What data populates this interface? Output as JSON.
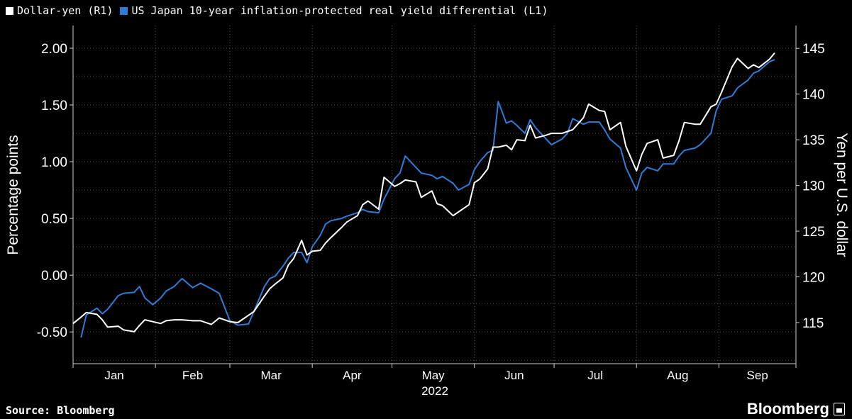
{
  "legend": {
    "items": [
      {
        "label": "Dollar-yen (R1)",
        "color": "#ffffff"
      },
      {
        "label": "US Japan 10-year inflation-protected real yield differential (L1)",
        "color": "#2f7bd6"
      }
    ]
  },
  "footer": {
    "source": "Source: Bloomberg",
    "brand": "Bloomberg"
  },
  "chart_data": {
    "type": "line",
    "year_label": "2022",
    "x_months": [
      "Jan",
      "Feb",
      "Mar",
      "Apr",
      "May",
      "Jun",
      "Jul",
      "Aug",
      "Sep"
    ],
    "left_axis": {
      "label": "Percentage points",
      "ticks": [
        "2.00",
        "1.50",
        "1.00",
        "0.50",
        "0.00",
        "-0.50"
      ],
      "tick_values": [
        2.0,
        1.5,
        1.0,
        0.5,
        0.0,
        -0.5
      ],
      "range": [
        -0.78,
        2.2
      ]
    },
    "right_axis": {
      "label": "Yen per U.S. dollar",
      "ticks": [
        "145",
        "140",
        "135",
        "130",
        "125",
        "120",
        "115"
      ],
      "tick_values": [
        145,
        140,
        135,
        130,
        125,
        120,
        115
      ],
      "range": [
        110.5,
        147.5
      ]
    },
    "grid": true,
    "legend_position": "top-left",
    "series": [
      {
        "name": "Dollar-yen (R1)",
        "axis": "right",
        "color": "#ffffff",
        "points": [
          [
            "2022-01-01",
            114.9
          ],
          [
            "2022-01-04",
            115.6
          ],
          [
            "2022-01-06",
            116.1
          ],
          [
            "2022-01-10",
            115.9
          ],
          [
            "2022-01-12",
            115.3
          ],
          [
            "2022-01-14",
            114.5
          ],
          [
            "2022-01-18",
            114.6
          ],
          [
            "2022-01-20",
            114.2
          ],
          [
            "2022-01-24",
            114.0
          ],
          [
            "2022-01-26",
            114.7
          ],
          [
            "2022-01-28",
            115.3
          ],
          [
            "2022-01-31",
            115.1
          ],
          [
            "2022-02-03",
            114.9
          ],
          [
            "2022-02-05",
            115.2
          ],
          [
            "2022-02-08",
            115.3
          ],
          [
            "2022-02-11",
            115.3
          ],
          [
            "2022-02-15",
            115.2
          ],
          [
            "2022-02-18",
            115.2
          ],
          [
            "2022-02-22",
            114.8
          ],
          [
            "2022-02-25",
            115.5
          ],
          [
            "2022-03-01",
            115.1
          ],
          [
            "2022-03-04",
            115.0
          ],
          [
            "2022-03-08",
            115.8
          ],
          [
            "2022-03-10",
            116.2
          ],
          [
            "2022-03-14",
            117.9
          ],
          [
            "2022-03-16",
            118.7
          ],
          [
            "2022-03-18",
            119.2
          ],
          [
            "2022-03-21",
            119.9
          ],
          [
            "2022-03-23",
            121.3
          ],
          [
            "2022-03-25",
            122.0
          ],
          [
            "2022-03-28",
            124.0
          ],
          [
            "2022-03-30",
            122.4
          ],
          [
            "2022-04-01",
            122.8
          ],
          [
            "2022-04-04",
            122.9
          ],
          [
            "2022-04-06",
            123.7
          ],
          [
            "2022-04-08",
            124.3
          ],
          [
            "2022-04-12",
            125.4
          ],
          [
            "2022-04-14",
            126.0
          ],
          [
            "2022-04-18",
            126.7
          ],
          [
            "2022-04-20",
            127.9
          ],
          [
            "2022-04-22",
            128.3
          ],
          [
            "2022-04-26",
            127.4
          ],
          [
            "2022-04-28",
            130.9
          ],
          [
            "2022-05-02",
            129.9
          ],
          [
            "2022-05-04",
            130.2
          ],
          [
            "2022-05-06",
            130.6
          ],
          [
            "2022-05-10",
            130.4
          ],
          [
            "2022-05-12",
            128.7
          ],
          [
            "2022-05-16",
            129.4
          ],
          [
            "2022-05-18",
            128.0
          ],
          [
            "2022-05-20",
            127.8
          ],
          [
            "2022-05-24",
            126.7
          ],
          [
            "2022-05-26",
            127.1
          ],
          [
            "2022-05-30",
            127.9
          ],
          [
            "2022-06-01",
            130.3
          ],
          [
            "2022-06-03",
            130.7
          ],
          [
            "2022-06-06",
            131.8
          ],
          [
            "2022-06-08",
            134.2
          ],
          [
            "2022-06-10",
            134.2
          ],
          [
            "2022-06-13",
            134.4
          ],
          [
            "2022-06-15",
            133.9
          ],
          [
            "2022-06-17",
            135.0
          ],
          [
            "2022-06-20",
            134.9
          ],
          [
            "2022-06-22",
            136.6
          ],
          [
            "2022-06-24",
            135.2
          ],
          [
            "2022-06-28",
            135.5
          ],
          [
            "2022-06-30",
            135.7
          ],
          [
            "2022-07-04",
            135.7
          ],
          [
            "2022-07-06",
            135.9
          ],
          [
            "2022-07-08",
            136.1
          ],
          [
            "2022-07-12",
            137.4
          ],
          [
            "2022-07-14",
            138.9
          ],
          [
            "2022-07-18",
            138.2
          ],
          [
            "2022-07-20",
            138.1
          ],
          [
            "2022-07-22",
            136.1
          ],
          [
            "2022-07-26",
            136.9
          ],
          [
            "2022-07-28",
            134.3
          ],
          [
            "2022-08-01",
            131.6
          ],
          [
            "2022-08-03",
            133.4
          ],
          [
            "2022-08-05",
            134.6
          ],
          [
            "2022-08-09",
            135.0
          ],
          [
            "2022-08-11",
            133.0
          ],
          [
            "2022-08-15",
            133.3
          ],
          [
            "2022-08-17",
            134.9
          ],
          [
            "2022-08-19",
            136.9
          ],
          [
            "2022-08-23",
            136.7
          ],
          [
            "2022-08-25",
            136.7
          ],
          [
            "2022-08-29",
            138.6
          ],
          [
            "2022-08-31",
            138.9
          ],
          [
            "2022-09-02",
            140.2
          ],
          [
            "2022-09-06",
            143.0
          ],
          [
            "2022-09-08",
            143.9
          ],
          [
            "2022-09-12",
            142.8
          ],
          [
            "2022-09-14",
            143.2
          ],
          [
            "2022-09-16",
            142.9
          ],
          [
            "2022-09-20",
            143.8
          ],
          [
            "2022-09-22",
            144.5
          ]
        ]
      },
      {
        "name": "US Japan 10-year inflation-protected real yield differential (L1)",
        "axis": "left",
        "color": "#2f7bd6",
        "points": [
          [
            "2022-01-04",
            -0.55
          ],
          [
            "2022-01-06",
            -0.35
          ],
          [
            "2022-01-10",
            -0.29
          ],
          [
            "2022-01-12",
            -0.34
          ],
          [
            "2022-01-14",
            -0.3
          ],
          [
            "2022-01-18",
            -0.18
          ],
          [
            "2022-01-20",
            -0.16
          ],
          [
            "2022-01-24",
            -0.15
          ],
          [
            "2022-01-26",
            -0.1
          ],
          [
            "2022-01-28",
            -0.2
          ],
          [
            "2022-01-31",
            -0.26
          ],
          [
            "2022-02-03",
            -0.2
          ],
          [
            "2022-02-05",
            -0.14
          ],
          [
            "2022-02-08",
            -0.1
          ],
          [
            "2022-02-11",
            -0.03
          ],
          [
            "2022-02-15",
            -0.11
          ],
          [
            "2022-02-18",
            -0.07
          ],
          [
            "2022-02-22",
            -0.12
          ],
          [
            "2022-02-25",
            -0.16
          ],
          [
            "2022-03-01",
            -0.4
          ],
          [
            "2022-03-04",
            -0.44
          ],
          [
            "2022-03-08",
            -0.43
          ],
          [
            "2022-03-10",
            -0.32
          ],
          [
            "2022-03-14",
            -0.1
          ],
          [
            "2022-03-16",
            -0.03
          ],
          [
            "2022-03-18",
            -0.01
          ],
          [
            "2022-03-21",
            0.08
          ],
          [
            "2022-03-23",
            0.15
          ],
          [
            "2022-03-25",
            0.2
          ],
          [
            "2022-03-28",
            0.2
          ],
          [
            "2022-03-30",
            0.11
          ],
          [
            "2022-04-01",
            0.25
          ],
          [
            "2022-04-04",
            0.35
          ],
          [
            "2022-04-06",
            0.45
          ],
          [
            "2022-04-08",
            0.48
          ],
          [
            "2022-04-12",
            0.5
          ],
          [
            "2022-04-14",
            0.52
          ],
          [
            "2022-04-18",
            0.55
          ],
          [
            "2022-04-20",
            0.58
          ],
          [
            "2022-04-22",
            0.56
          ],
          [
            "2022-04-26",
            0.55
          ],
          [
            "2022-04-28",
            0.67
          ],
          [
            "2022-05-02",
            0.85
          ],
          [
            "2022-05-04",
            0.9
          ],
          [
            "2022-05-06",
            1.05
          ],
          [
            "2022-05-10",
            0.95
          ],
          [
            "2022-05-12",
            0.9
          ],
          [
            "2022-05-16",
            0.88
          ],
          [
            "2022-05-18",
            0.85
          ],
          [
            "2022-05-20",
            0.87
          ],
          [
            "2022-05-24",
            0.81
          ],
          [
            "2022-05-26",
            0.75
          ],
          [
            "2022-05-30",
            0.8
          ],
          [
            "2022-06-01",
            0.93
          ],
          [
            "2022-06-03",
            1.0
          ],
          [
            "2022-06-06",
            1.08
          ],
          [
            "2022-06-08",
            1.1
          ],
          [
            "2022-06-10",
            1.53
          ],
          [
            "2022-06-13",
            1.34
          ],
          [
            "2022-06-15",
            1.36
          ],
          [
            "2022-06-17",
            1.32
          ],
          [
            "2022-06-20",
            1.25
          ],
          [
            "2022-06-22",
            1.37
          ],
          [
            "2022-06-24",
            1.3
          ],
          [
            "2022-06-28",
            1.2
          ],
          [
            "2022-06-30",
            1.15
          ],
          [
            "2022-07-04",
            1.2
          ],
          [
            "2022-07-06",
            1.25
          ],
          [
            "2022-07-08",
            1.38
          ],
          [
            "2022-07-12",
            1.33
          ],
          [
            "2022-07-14",
            1.35
          ],
          [
            "2022-07-18",
            1.35
          ],
          [
            "2022-07-20",
            1.28
          ],
          [
            "2022-07-22",
            1.2
          ],
          [
            "2022-07-26",
            1.12
          ],
          [
            "2022-07-28",
            0.95
          ],
          [
            "2022-08-01",
            0.75
          ],
          [
            "2022-08-03",
            0.9
          ],
          [
            "2022-08-05",
            0.95
          ],
          [
            "2022-08-09",
            0.92
          ],
          [
            "2022-08-11",
            0.98
          ],
          [
            "2022-08-15",
            0.98
          ],
          [
            "2022-08-17",
            1.05
          ],
          [
            "2022-08-19",
            1.1
          ],
          [
            "2022-08-23",
            1.12
          ],
          [
            "2022-08-25",
            1.15
          ],
          [
            "2022-08-29",
            1.25
          ],
          [
            "2022-08-31",
            1.45
          ],
          [
            "2022-09-02",
            1.55
          ],
          [
            "2022-09-06",
            1.58
          ],
          [
            "2022-09-08",
            1.65
          ],
          [
            "2022-09-12",
            1.72
          ],
          [
            "2022-09-14",
            1.78
          ],
          [
            "2022-09-16",
            1.8
          ],
          [
            "2022-09-20",
            1.88
          ],
          [
            "2022-09-22",
            1.9
          ]
        ]
      }
    ]
  }
}
